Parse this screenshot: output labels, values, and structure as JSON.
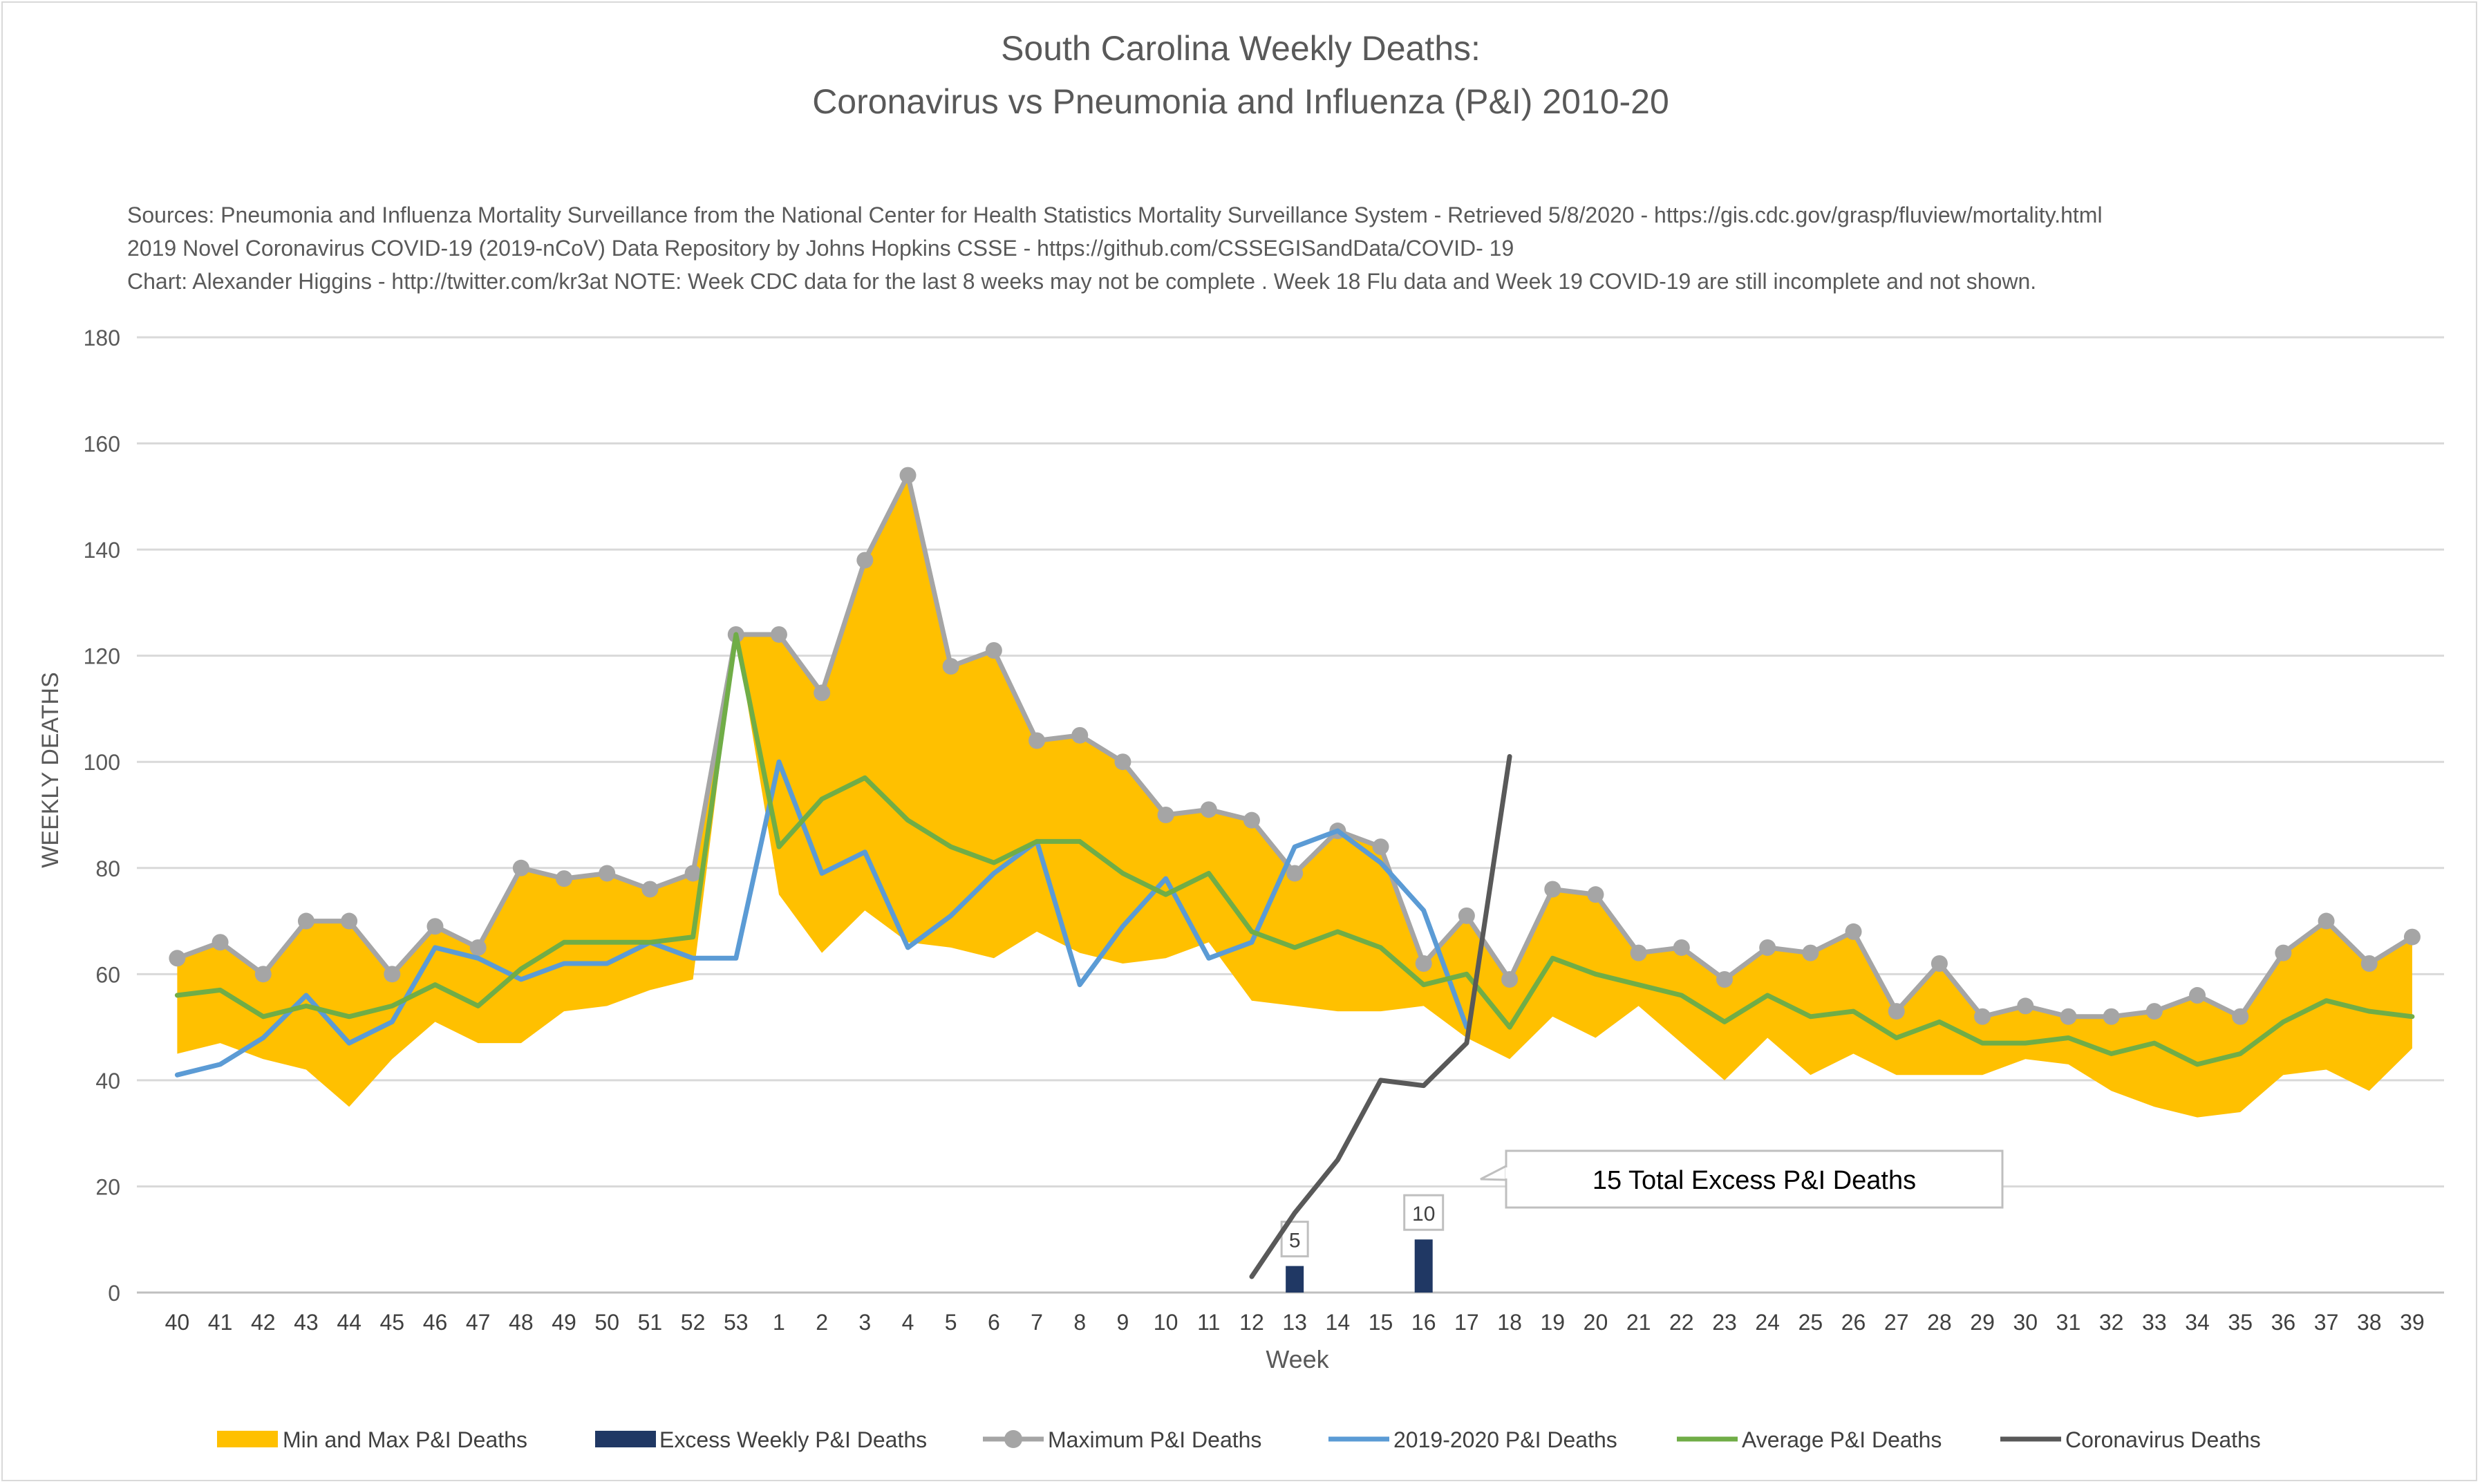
{
  "chart_data": {
    "type": "area",
    "title_line1": "South Carolina Weekly Deaths:",
    "title_line2": "Coronavirus vs Pneumonia and Influenza (P&I) 2010-20",
    "sources": [
      "Sources: Pneumonia and Influenza Mortality Surveillance from the National Center for Health Statistics Mortality Surveillance System - Retrieved 5/8/2020 - https://gis.cdc.gov/grasp/fluview/mortality.html",
      "2019 Novel Coronavirus COVID-19 (2019-nCoV) Data Repository by Johns Hopkins CSSE - https://github.com/CSSEGISandData/COVID- 19",
      "Chart: Alexander Higgins - http://twitter.com/kr3at   NOTE: Week CDC data for the last 8 weeks may not be complete . Week 18 Flu data and Week 19 COVID-19 are still incomplete and not shown."
    ],
    "xlabel": "Week",
    "ylabel": "WEEKLY DEATHS",
    "ylim": [
      0,
      180
    ],
    "yticks": [
      0,
      20,
      40,
      60,
      80,
      100,
      120,
      140,
      160,
      180
    ],
    "grid": true,
    "legend_position": "bottom",
    "categories": [
      "40",
      "41",
      "42",
      "43",
      "44",
      "45",
      "46",
      "47",
      "48",
      "49",
      "50",
      "51",
      "52",
      "53",
      "1",
      "2",
      "3",
      "4",
      "5",
      "6",
      "7",
      "8",
      "9",
      "10",
      "11",
      "12",
      "13",
      "14",
      "15",
      "16",
      "17",
      "18",
      "19",
      "20",
      "21",
      "22",
      "23",
      "24",
      "25",
      "26",
      "27",
      "28",
      "29",
      "30",
      "31",
      "32",
      "33",
      "34",
      "35",
      "36",
      "37",
      "38",
      "39"
    ],
    "series": [
      {
        "name": "Min and Max P&I Deaths",
        "kind": "band",
        "color": "#ffc000",
        "lower": [
          45,
          47,
          44,
          42,
          35,
          44,
          51,
          47,
          47,
          53,
          54,
          57,
          59,
          124,
          75,
          64,
          72,
          66,
          65,
          63,
          68,
          64,
          62,
          63,
          66,
          55,
          54,
          53,
          53,
          54,
          48,
          44,
          52,
          48,
          54,
          47,
          40,
          48,
          41,
          45,
          41,
          41,
          41,
          44,
          43,
          38,
          35,
          33,
          34,
          41,
          42,
          38,
          46
        ],
        "upper": [
          63,
          66,
          60,
          70,
          70,
          60,
          69,
          65,
          80,
          78,
          79,
          76,
          79,
          124,
          124,
          113,
          138,
          154,
          118,
          121,
          104,
          105,
          100,
          90,
          91,
          89,
          79,
          87,
          84,
          62,
          71,
          59,
          76,
          75,
          64,
          65,
          59,
          65,
          64,
          68,
          53,
          62,
          52,
          54,
          52,
          52,
          53,
          56,
          52,
          64,
          70,
          62,
          67
        ]
      },
      {
        "name": "Excess Weekly P&I Deaths",
        "kind": "bar",
        "color": "#203864",
        "points": [
          {
            "x": "13",
            "y": 5,
            "label": "5"
          },
          {
            "x": "16",
            "y": 10,
            "label": "10"
          }
        ]
      },
      {
        "name": "Maximum P&I Deaths",
        "kind": "line-markers",
        "color": "#a5a5a5",
        "values": [
          63,
          66,
          60,
          70,
          70,
          60,
          69,
          65,
          80,
          78,
          79,
          76,
          79,
          124,
          124,
          113,
          138,
          154,
          118,
          121,
          104,
          105,
          100,
          90,
          91,
          89,
          79,
          87,
          84,
          62,
          71,
          59,
          76,
          75,
          64,
          65,
          59,
          65,
          64,
          68,
          53,
          62,
          52,
          54,
          52,
          52,
          53,
          56,
          52,
          64,
          70,
          62,
          67
        ]
      },
      {
        "name": "2019-2020 P&I Deaths",
        "kind": "line",
        "color": "#5b9bd5",
        "values": [
          41,
          43,
          48,
          56,
          47,
          51,
          65,
          63,
          59,
          62,
          62,
          66,
          63,
          63,
          100,
          79,
          83,
          65,
          71,
          79,
          85,
          58,
          69,
          78,
          63,
          66,
          84,
          87,
          81,
          72,
          50,
          null,
          null,
          null,
          null,
          null,
          null,
          null,
          null,
          null,
          null,
          null,
          null,
          null,
          null,
          null,
          null,
          null,
          null,
          null,
          null,
          null,
          null
        ]
      },
      {
        "name": "Average P&I Deaths",
        "kind": "line",
        "color": "#70ad47",
        "values": [
          56,
          57,
          52,
          54,
          52,
          54,
          58,
          54,
          61,
          66,
          66,
          66,
          67,
          124,
          84,
          93,
          97,
          89,
          84,
          81,
          85,
          85,
          79,
          75,
          79,
          68,
          65,
          68,
          65,
          58,
          60,
          50,
          63,
          60,
          58,
          56,
          51,
          56,
          52,
          53,
          48,
          51,
          47,
          47,
          48,
          45,
          47,
          43,
          45,
          51,
          55,
          53,
          52
        ]
      },
      {
        "name": "Coronavirus Deaths",
        "kind": "line",
        "color": "#595959",
        "values": [
          null,
          null,
          null,
          null,
          null,
          null,
          null,
          null,
          null,
          null,
          null,
          null,
          null,
          null,
          null,
          null,
          null,
          null,
          null,
          null,
          null,
          null,
          null,
          null,
          null,
          3,
          15,
          25,
          40,
          39,
          47,
          101,
          null,
          null,
          null,
          null,
          null,
          null,
          null,
          null,
          null,
          null,
          null,
          null,
          null,
          null,
          null,
          null,
          null,
          null,
          null,
          null,
          null
        ]
      }
    ],
    "callout": "15 Total Excess P&I Deaths"
  }
}
